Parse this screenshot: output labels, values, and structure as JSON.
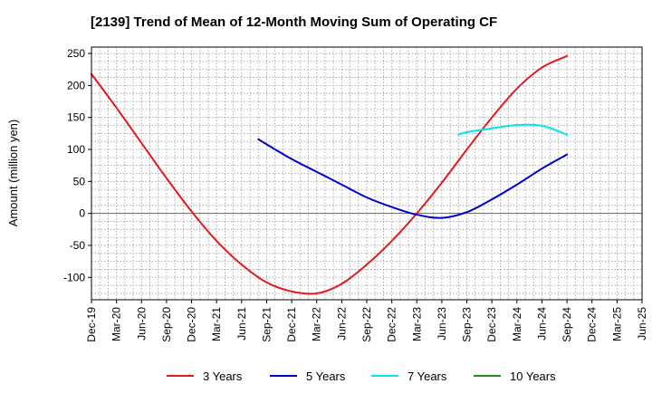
{
  "chart_data": {
    "type": "line",
    "title": "[2139]  Trend of Mean of 12-Month Moving Sum of Operating CF",
    "xlabel": "",
    "ylabel": "Amount (million yen)",
    "ylim": [
      -135,
      260
    ],
    "yticks": [
      250,
      200,
      150,
      100,
      50,
      0,
      -50,
      -100
    ],
    "ytick_labels": [
      "250",
      "200",
      "150",
      "100",
      "50",
      "0",
      "-50",
      "-100"
    ],
    "x_start": 0,
    "x_end": 66,
    "x_ticks": [
      {
        "label": "Dec-19",
        "x": 0
      },
      {
        "label": "Mar-20",
        "x": 3
      },
      {
        "label": "Jun-20",
        "x": 6
      },
      {
        "label": "Sep-20",
        "x": 9
      },
      {
        "label": "Dec-20",
        "x": 12
      },
      {
        "label": "Mar-21",
        "x": 15
      },
      {
        "label": "Jun-21",
        "x": 18
      },
      {
        "label": "Sep-21",
        "x": 21
      },
      {
        "label": "Dec-21",
        "x": 24
      },
      {
        "label": "Mar-22",
        "x": 27
      },
      {
        "label": "Jun-22",
        "x": 30
      },
      {
        "label": "Sep-22",
        "x": 33
      },
      {
        "label": "Dec-22",
        "x": 36
      },
      {
        "label": "Mar-23",
        "x": 39
      },
      {
        "label": "Jun-23",
        "x": 42
      },
      {
        "label": "Sep-23",
        "x": 45
      },
      {
        "label": "Dec-23",
        "x": 48
      },
      {
        "label": "Mar-24",
        "x": 51
      },
      {
        "label": "Jun-24",
        "x": 54
      },
      {
        "label": "Sep-24",
        "x": 57
      },
      {
        "label": "Dec-24",
        "x": 60
      },
      {
        "label": "Mar-25",
        "x": 63
      },
      {
        "label": "Jun-25",
        "x": 66
      }
    ],
    "grid": true,
    "legend_position": "bottom",
    "series": [
      {
        "name": "3 Years",
        "color": "#e31a1c",
        "x": [
          0,
          3,
          6,
          9,
          12,
          15,
          18,
          21,
          24,
          27,
          30,
          33,
          36,
          39,
          42,
          45,
          48,
          51,
          54,
          57
        ],
        "values": [
          218,
          165,
          110,
          55,
          3,
          -43,
          -80,
          -108,
          -122,
          -125,
          -110,
          -80,
          -43,
          0,
          48,
          100,
          150,
          195,
          228,
          246
        ]
      },
      {
        "name": "5 Years",
        "color": "#0000cc",
        "x": [
          20,
          21,
          24,
          27,
          30,
          33,
          36,
          39,
          42,
          45,
          48,
          51,
          54,
          57
        ],
        "values": [
          116,
          108,
          85,
          65,
          45,
          25,
          10,
          -2,
          -7,
          2,
          22,
          45,
          70,
          92
        ]
      },
      {
        "name": "7 Years",
        "color": "#00e5ee",
        "x": [
          44,
          45,
          48,
          51,
          54,
          57
        ],
        "values": [
          123,
          127,
          133,
          138,
          137,
          123
        ]
      },
      {
        "name": "10 Years",
        "color": "#228b22",
        "x": [],
        "values": []
      }
    ]
  }
}
